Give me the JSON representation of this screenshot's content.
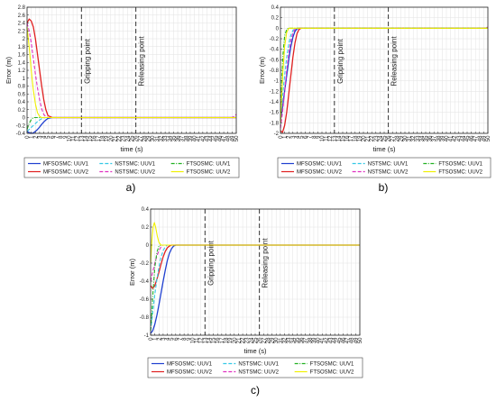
{
  "chart_data": [
    {
      "type": "line",
      "caption": "a)",
      "xlabel": "time (s)",
      "ylabel": "Error (m)",
      "xlim": [
        0,
        50
      ],
      "ylim": [
        -0.4,
        2.8
      ],
      "xticks": [
        0,
        1,
        2,
        3,
        4,
        5,
        6,
        7,
        8,
        9,
        10,
        11,
        12,
        13,
        14,
        15,
        16,
        17,
        18,
        19,
        20,
        21,
        22,
        23,
        24,
        25,
        26,
        27,
        28,
        29,
        30,
        31,
        32,
        33,
        34,
        35,
        36,
        37,
        38,
        39,
        40,
        41,
        42,
        43,
        44,
        45,
        46,
        47,
        48,
        49,
        50
      ],
      "yticks": [
        -0.4,
        -0.2,
        0,
        0.2,
        0.4,
        0.6,
        0.8,
        1,
        1.2,
        1.4,
        1.6,
        1.8,
        2,
        2.2,
        2.4,
        2.6,
        2.8
      ],
      "ytick_labels": [
        "-0.4",
        "-0.2",
        "0",
        "0.2",
        "0.4",
        "0.6",
        "0.8",
        "1",
        "1.2",
        "1.4",
        "1.6",
        "1.8",
        "2",
        "2.2",
        "2.4",
        "2.6",
        "2.8"
      ],
      "grid": true,
      "annotations": [
        {
          "x": 13,
          "text": "Gripping point"
        },
        {
          "x": 26,
          "text": "Releasing point"
        }
      ],
      "series": [
        {
          "name": "MFSOSMC: UUV1",
          "color": "#1f3fd0",
          "dash": "solid",
          "x": [
            0,
            0.5,
            1,
            1.5,
            2,
            2.5,
            3,
            3.5,
            4,
            4.5,
            5,
            6,
            7,
            50
          ],
          "y": [
            -0.35,
            -0.38,
            -0.4,
            -0.39,
            -0.35,
            -0.3,
            -0.24,
            -0.17,
            -0.11,
            -0.06,
            -0.02,
            0,
            0,
            0
          ]
        },
        {
          "name": "MFSOSMC: UUV2",
          "color": "#e02020",
          "dash": "solid",
          "x": [
            0,
            0.5,
            1,
            1.5,
            2,
            2.5,
            3,
            3.5,
            4,
            4.5,
            5,
            6,
            7,
            50
          ],
          "y": [
            2.4,
            2.5,
            2.45,
            2.3,
            2.0,
            1.6,
            1.2,
            0.8,
            0.45,
            0.2,
            0.05,
            0,
            0,
            0
          ]
        },
        {
          "name": "NSTSMC: UUV1",
          "color": "#33c8e6",
          "dash": "dash",
          "x": [
            0,
            0.5,
            1,
            1.5,
            2,
            2.5,
            3,
            3.5,
            4,
            4.5,
            5,
            50
          ],
          "y": [
            -0.35,
            -0.3,
            -0.25,
            -0.2,
            -0.15,
            -0.1,
            -0.06,
            -0.03,
            -0.01,
            0,
            0,
            0
          ]
        },
        {
          "name": "NSTSMC: UUV2",
          "color": "#e030c0",
          "dash": "dash",
          "x": [
            0,
            0.5,
            1,
            1.5,
            2,
            2.5,
            3,
            3.5,
            4,
            4.5,
            5,
            49,
            50
          ],
          "y": [
            2.4,
            2.2,
            1.9,
            1.5,
            1.1,
            0.75,
            0.45,
            0.22,
            0.08,
            0.02,
            0,
            0,
            0.08
          ]
        },
        {
          "name": "FTSOSMC: UUV1",
          "color": "#20b020",
          "dash": "dashdot",
          "x": [
            0,
            0.5,
            1,
            1.5,
            2,
            2.5,
            3,
            50
          ],
          "y": [
            -0.3,
            -0.15,
            -0.05,
            0,
            0,
            0,
            0,
            0
          ]
        },
        {
          "name": "FTSOSMC: UUV2",
          "color": "#f0f000",
          "dash": "solid",
          "x": [
            0,
            0.5,
            1,
            1.5,
            2,
            2.5,
            3,
            3.5,
            4,
            50
          ],
          "y": [
            2.3,
            1.8,
            1.2,
            0.7,
            0.35,
            0.12,
            0.03,
            0,
            0,
            0
          ]
        }
      ]
    },
    {
      "type": "line",
      "caption": "b)",
      "xlabel": "time (s)",
      "ylabel": "Error (m)",
      "xlim": [
        0,
        50
      ],
      "ylim": [
        -2,
        0.4
      ],
      "xticks": [
        0,
        1,
        2,
        3,
        4,
        5,
        6,
        7,
        8,
        9,
        10,
        11,
        12,
        13,
        14,
        15,
        16,
        17,
        18,
        19,
        20,
        21,
        22,
        23,
        24,
        25,
        26,
        27,
        28,
        29,
        30,
        31,
        32,
        33,
        34,
        35,
        36,
        37,
        38,
        39,
        40,
        41,
        42,
        43,
        44,
        45,
        46,
        47,
        48,
        49,
        50
      ],
      "yticks": [
        -2,
        -1.8,
        -1.6,
        -1.4,
        -1.2,
        -1,
        -0.8,
        -0.6,
        -0.4,
        -0.2,
        0,
        0.2,
        0.4
      ],
      "ytick_labels": [
        "-2",
        "-1.8",
        "-1.6",
        "-1.4",
        "-1.2",
        "-1",
        "-0.8",
        "-0.6",
        "-0.4",
        "-0.2",
        "0",
        "0.2",
        "0.4"
      ],
      "grid": true,
      "annotations": [
        {
          "x": 13,
          "text": "Gripping point"
        },
        {
          "x": 26,
          "text": "Releasing point"
        }
      ],
      "series": [
        {
          "name": "MFSOSMC: UUV1",
          "color": "#1f3fd0",
          "dash": "solid",
          "x": [
            0,
            0.5,
            1,
            1.5,
            2,
            2.5,
            3,
            3.5,
            4,
            4.5,
            50
          ],
          "y": [
            -1.75,
            -1.5,
            -1.2,
            -0.9,
            -0.6,
            -0.35,
            -0.17,
            -0.06,
            -0.01,
            0,
            0
          ]
        },
        {
          "name": "MFSOSMC: UUV2",
          "color": "#e02020",
          "dash": "solid",
          "x": [
            0,
            0.5,
            1,
            1.5,
            2,
            2.5,
            3,
            3.5,
            4,
            4.5,
            5,
            50
          ],
          "y": [
            -1.95,
            -1.98,
            -1.85,
            -1.6,
            -1.25,
            -0.9,
            -0.55,
            -0.28,
            -0.1,
            -0.02,
            0,
            0
          ]
        },
        {
          "name": "NSTSMC: UUV1",
          "color": "#33c8e6",
          "dash": "dash",
          "x": [
            0,
            0.5,
            1,
            1.5,
            2,
            2.5,
            3,
            3.5,
            4,
            50
          ],
          "y": [
            -1.7,
            -1.3,
            -0.9,
            -0.55,
            -0.3,
            -0.13,
            -0.04,
            -0.01,
            0,
            0
          ]
        },
        {
          "name": "NSTSMC: UUV2",
          "color": "#e030c0",
          "dash": "dash",
          "x": [
            0,
            0.5,
            1,
            1.5,
            2,
            2.5,
            3,
            3.5,
            4,
            49,
            50
          ],
          "y": [
            -1.9,
            -1.6,
            -1.2,
            -0.8,
            -0.48,
            -0.24,
            -0.09,
            -0.02,
            0,
            0,
            0.02
          ]
        },
        {
          "name": "FTSOSMC: UUV1",
          "color": "#20b020",
          "dash": "dashdot",
          "x": [
            0,
            0.3,
            0.6,
            1,
            1.5,
            2,
            50
          ],
          "y": [
            -1.6,
            -1.0,
            -0.5,
            -0.15,
            -0.02,
            0,
            0
          ]
        },
        {
          "name": "FTSOSMC: UUV2",
          "color": "#f0f000",
          "dash": "solid",
          "x": [
            0,
            0.3,
            0.6,
            1,
            1.5,
            2,
            2.5,
            50
          ],
          "y": [
            -1.8,
            -1.3,
            -0.8,
            -0.35,
            -0.08,
            0,
            0,
            0
          ]
        }
      ]
    },
    {
      "type": "line",
      "caption": "c)",
      "xlabel": "time (s)",
      "ylabel": "Error (m)",
      "xlim": [
        0,
        50
      ],
      "ylim": [
        -1,
        0.4
      ],
      "xticks": [
        0,
        1,
        2,
        3,
        4,
        5,
        6,
        7,
        8,
        9,
        10,
        11,
        12,
        13,
        14,
        15,
        16,
        17,
        18,
        19,
        20,
        21,
        22,
        23,
        24,
        25,
        26,
        27,
        28,
        29,
        30,
        31,
        32,
        33,
        34,
        35,
        36,
        37,
        38,
        39,
        40,
        41,
        42,
        43,
        44,
        45,
        46,
        47,
        48,
        49,
        50
      ],
      "yticks": [
        -1,
        -0.8,
        -0.6,
        -0.4,
        -0.2,
        0,
        0.2,
        0.4
      ],
      "ytick_labels": [
        "-1",
        "-0.8",
        "-0.6",
        "-0.4",
        "-0.2",
        "0",
        "0.2",
        "0.4"
      ],
      "grid": true,
      "annotations": [
        {
          "x": 13,
          "text": "Gripping point"
        },
        {
          "x": 26,
          "text": "Releasing point"
        }
      ],
      "series": [
        {
          "name": "MFSOSMC: UUV1",
          "color": "#1f3fd0",
          "dash": "solid",
          "x": [
            0,
            0.5,
            1,
            1.5,
            2,
            2.5,
            3,
            3.5,
            4,
            4.5,
            5,
            5.5,
            6,
            50
          ],
          "y": [
            -0.98,
            -0.95,
            -0.88,
            -0.78,
            -0.66,
            -0.53,
            -0.4,
            -0.28,
            -0.17,
            -0.09,
            -0.04,
            -0.01,
            0,
            0
          ]
        },
        {
          "name": "MFSOSMC: UUV2",
          "color": "#e02020",
          "dash": "solid",
          "x": [
            0,
            0.5,
            1,
            1.5,
            2,
            2.5,
            3,
            3.5,
            4,
            4.5,
            5,
            50
          ],
          "y": [
            -0.45,
            -0.48,
            -0.45,
            -0.38,
            -0.3,
            -0.21,
            -0.13,
            -0.07,
            -0.03,
            -0.01,
            0,
            0
          ]
        },
        {
          "name": "NSTSMC: UUV1",
          "color": "#33c8e6",
          "dash": "dash",
          "x": [
            0,
            0.5,
            1,
            1.5,
            2,
            2.5,
            3,
            3.5,
            4,
            50
          ],
          "y": [
            -0.95,
            -0.75,
            -0.55,
            -0.38,
            -0.24,
            -0.13,
            -0.06,
            -0.02,
            0,
            0
          ]
        },
        {
          "name": "NSTSMC: UUV2",
          "color": "#e030c0",
          "dash": "dash",
          "x": [
            0,
            0.5,
            1,
            1.5,
            2,
            2.5,
            3,
            3.5,
            50
          ],
          "y": [
            -0.4,
            -0.3,
            -0.2,
            -0.12,
            -0.06,
            -0.02,
            0,
            0,
            0
          ]
        },
        {
          "name": "FTSOSMC: UUV1",
          "color": "#20b020",
          "dash": "dashdot",
          "x": [
            0,
            0.3,
            0.6,
            1,
            1.5,
            2,
            2.5,
            50
          ],
          "y": [
            -0.95,
            -0.75,
            -0.5,
            -0.25,
            -0.08,
            -0.01,
            0,
            0
          ]
        },
        {
          "name": "FTSOSMC: UUV2",
          "color": "#f0f000",
          "dash": "solid",
          "x": [
            0,
            0.3,
            0.6,
            0.9,
            1.2,
            1.6,
            2,
            2.5,
            3,
            50
          ],
          "y": [
            -0.2,
            0.05,
            0.2,
            0.25,
            0.2,
            0.1,
            0.03,
            0,
            0,
            0
          ]
        }
      ]
    }
  ]
}
